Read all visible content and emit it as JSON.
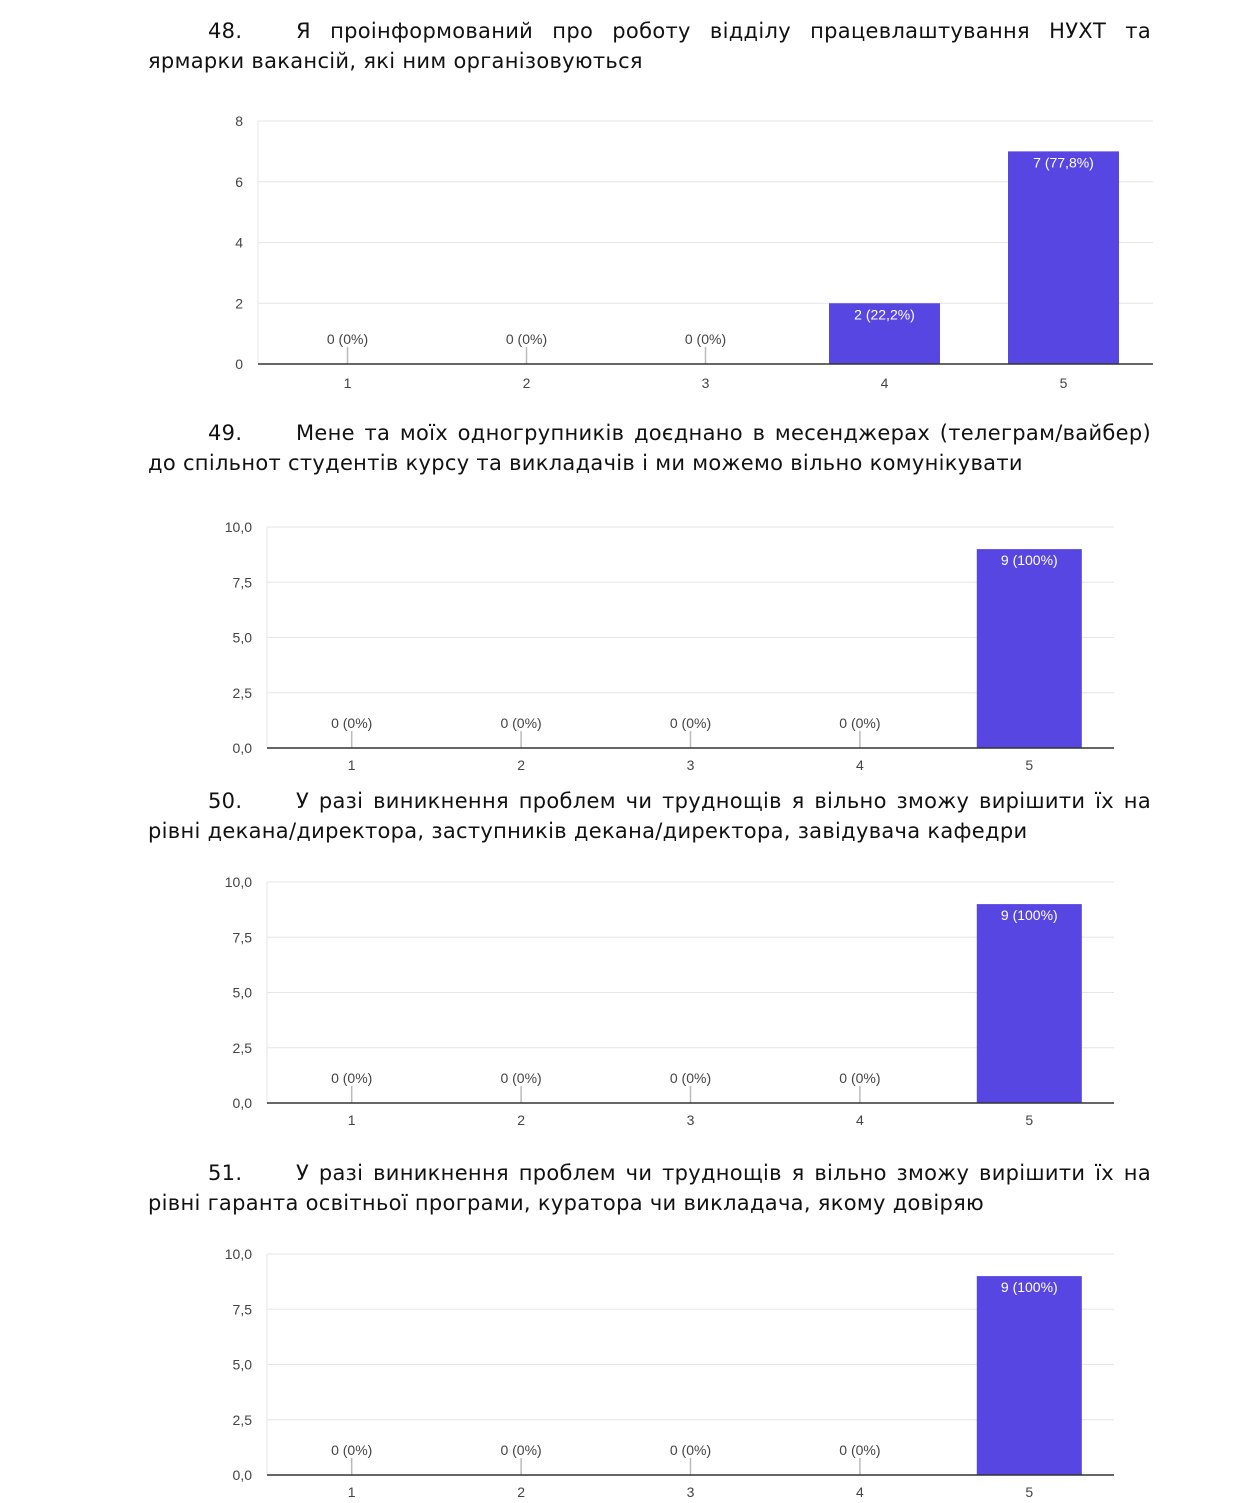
{
  "questions": [
    {
      "number": "48.",
      "text": "Я проінформований про роботу відділу працевлаштування НУХТ та ярмарки вакансій, які ним організовуються"
    },
    {
      "number": "49.",
      "text": "Мене та моїх одногрупників доєднано в месенджерах (телеграм/вайбер) до спільнот студентів курсу та викладачів і ми можемо вільно комунікувати"
    },
    {
      "number": "50.",
      "text": "У разі виникнення проблем чи труднощів я вільно зможу вирішити їх на рівні декана/директора, заступників декана/директора, завідувача кафедри"
    },
    {
      "number": "51.",
      "text": "У разі виникнення проблем чи труднощів я вільно зможу вирішити їх на рівні гаранта освітньої програми, куратора чи викладача, якому довіряю"
    }
  ],
  "colors": {
    "bar": "#5846e3",
    "grid": "#e6e6e6",
    "axis": "#333333",
    "text": "#444444"
  },
  "chart_data": [
    {
      "type": "bar",
      "categories": [
        "1",
        "2",
        "3",
        "4",
        "5"
      ],
      "values": [
        0,
        0,
        0,
        2,
        7
      ],
      "data_labels": [
        "0 (0%)",
        "0 (0%)",
        "0 (0%)",
        "2 (22,2%)",
        "7 (77,8%)"
      ],
      "ylim": [
        0,
        8
      ],
      "yticks": [
        "0",
        "2",
        "4",
        "6",
        "8"
      ],
      "grid": true
    },
    {
      "type": "bar",
      "categories": [
        "1",
        "2",
        "3",
        "4",
        "5"
      ],
      "values": [
        0,
        0,
        0,
        0,
        9
      ],
      "data_labels": [
        "0 (0%)",
        "0 (0%)",
        "0 (0%)",
        "0 (0%)",
        "9 (100%)"
      ],
      "ylim": [
        0,
        10
      ],
      "yticks": [
        "0,0",
        "2,5",
        "5,0",
        "7,5",
        "10,0"
      ],
      "grid": true
    },
    {
      "type": "bar",
      "categories": [
        "1",
        "2",
        "3",
        "4",
        "5"
      ],
      "values": [
        0,
        0,
        0,
        0,
        9
      ],
      "data_labels": [
        "0 (0%)",
        "0 (0%)",
        "0 (0%)",
        "0 (0%)",
        "9 (100%)"
      ],
      "ylim": [
        0,
        10
      ],
      "yticks": [
        "0,0",
        "2,5",
        "5,0",
        "7,5",
        "10,0"
      ],
      "grid": true
    },
    {
      "type": "bar",
      "categories": [
        "1",
        "2",
        "3",
        "4",
        "5"
      ],
      "values": [
        0,
        0,
        0,
        0,
        9
      ],
      "data_labels": [
        "0 (0%)",
        "0 (0%)",
        "0 (0%)",
        "0 (0%)",
        "9 (100%)"
      ],
      "ylim": [
        0,
        10
      ],
      "yticks": [
        "0,0",
        "2,5",
        "5,0",
        "7,5",
        "10,0"
      ],
      "grid": true
    }
  ]
}
